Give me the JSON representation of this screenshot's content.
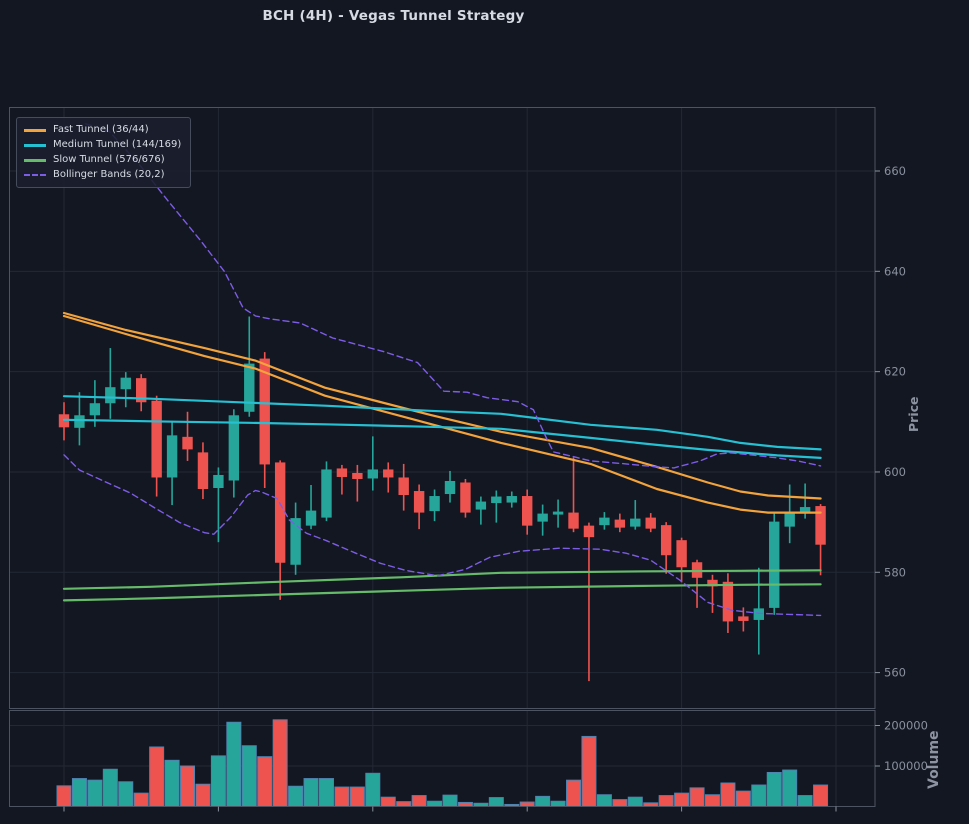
{
  "title": "BCH (4H) - Vegas Tunnel Strategy",
  "colors": {
    "background": "#131722",
    "up": "#26a69a",
    "down": "#ef5350",
    "fast": "#f3a33b",
    "medium": "#26c0d3",
    "slow": "#66bb6a",
    "bollinger": "#7d5ce6",
    "volume_edge": "#4f83b0",
    "grid": "#232834",
    "spine": "#4d5360",
    "tick_text": "#8a909e",
    "title_text": "#d5dae3"
  },
  "legend": {
    "items": [
      {
        "label": "Fast Tunnel (36/44)",
        "color": "#f3a33b",
        "dash": false
      },
      {
        "label": "Medium Tunnel (144/169)",
        "color": "#26c0d3",
        "dash": false
      },
      {
        "label": "Slow Tunnel (576/676)",
        "color": "#66bb6a",
        "dash": false
      },
      {
        "label": "Bollinger Bands (20,2)",
        "color": "#7d5ce6",
        "dash": true
      }
    ]
  },
  "price_axis": {
    "label": "Price",
    "ticks": [
      560,
      580,
      600,
      620,
      640,
      660
    ]
  },
  "volume_axis": {
    "label": "Volume",
    "ticks": [
      100000,
      200000
    ]
  },
  "chart_data": {
    "type": "candlestick",
    "title": "BCH (4H) - Vegas Tunnel Strategy",
    "x_ticks_every": 10,
    "price_axis": {
      "label": "Price",
      "ticks": [
        560,
        580,
        600,
        620,
        640,
        660
      ],
      "visible_range": [
        552.8,
        672.7
      ]
    },
    "volume_axis": {
      "label": "Volume",
      "ticks": [
        100000,
        200000
      ],
      "range": [
        0,
        240000
      ]
    },
    "candles_format": [
      "open",
      "high",
      "low",
      "close",
      "volume"
    ],
    "candles": [
      [
        611.5,
        613.9,
        606.3,
        608.9,
        51000
      ],
      [
        608.8,
        615.9,
        605.3,
        611.3,
        69000
      ],
      [
        611.3,
        618.3,
        609.0,
        613.7,
        65000
      ],
      [
        613.7,
        624.7,
        610.6,
        616.9,
        92000
      ],
      [
        616.5,
        619.9,
        612.9,
        618.8,
        61000
      ],
      [
        618.7,
        619.5,
        612.1,
        613.9,
        33000
      ],
      [
        614.2,
        615.2,
        595.1,
        598.9,
        147000
      ],
      [
        598.9,
        609.9,
        593.4,
        607.3,
        114000
      ],
      [
        607.0,
        612.0,
        602.2,
        604.5,
        100000
      ],
      [
        603.9,
        605.9,
        594.6,
        596.6,
        55000
      ],
      [
        596.8,
        600.9,
        586.0,
        599.4,
        125000
      ],
      [
        598.3,
        612.5,
        594.9,
        611.3,
        208000
      ],
      [
        612.0,
        631.0,
        611.0,
        621.6,
        150000
      ],
      [
        622.6,
        623.9,
        596.8,
        601.5,
        123000
      ],
      [
        601.9,
        602.3,
        574.5,
        581.9,
        214000
      ],
      [
        581.5,
        593.9,
        579.5,
        590.8,
        50000
      ],
      [
        589.3,
        597.4,
        588.6,
        592.3,
        69000
      ],
      [
        590.9,
        602.1,
        590.2,
        600.5,
        69000
      ],
      [
        600.7,
        601.4,
        595.5,
        599.0,
        48000
      ],
      [
        599.8,
        601.4,
        594.1,
        598.6,
        48000
      ],
      [
        598.7,
        607.1,
        596.3,
        600.5,
        82000
      ],
      [
        600.5,
        601.9,
        595.9,
        598.9,
        23000
      ],
      [
        598.9,
        601.6,
        592.3,
        595.4,
        12000
      ],
      [
        596.2,
        597.5,
        588.6,
        591.9,
        27000
      ],
      [
        592.2,
        596.5,
        590.2,
        595.2,
        13000
      ],
      [
        595.6,
        600.2,
        593.9,
        598.2,
        28000
      ],
      [
        597.9,
        598.6,
        590.9,
        591.9,
        10000
      ],
      [
        592.5,
        595.1,
        589.5,
        594.1,
        8000
      ],
      [
        593.8,
        596.3,
        589.9,
        595.1,
        22000
      ],
      [
        593.9,
        596.1,
        592.9,
        595.2,
        5000
      ],
      [
        595.2,
        596.5,
        587.5,
        589.3,
        11000
      ],
      [
        590.1,
        593.5,
        587.3,
        591.7,
        25000
      ],
      [
        591.5,
        594.5,
        588.9,
        592.1,
        13000
      ],
      [
        591.9,
        602.9,
        588.0,
        588.7,
        65000
      ],
      [
        589.3,
        589.9,
        558.3,
        587.0,
        173000
      ],
      [
        589.4,
        592.0,
        588.5,
        590.9,
        29000
      ],
      [
        590.5,
        591.7,
        588.0,
        588.9,
        17000
      ],
      [
        589.1,
        594.4,
        588.5,
        590.7,
        23000
      ],
      [
        590.9,
        591.8,
        588.0,
        588.7,
        9000
      ],
      [
        589.4,
        590.0,
        579.7,
        583.4,
        27000
      ],
      [
        586.4,
        586.9,
        578.0,
        581.0,
        33000
      ],
      [
        582.0,
        582.5,
        572.9,
        578.9,
        46000
      ],
      [
        578.5,
        579.5,
        571.9,
        577.2,
        29000
      ],
      [
        578.1,
        579.8,
        567.9,
        570.2,
        58000
      ],
      [
        571.2,
        573.0,
        568.2,
        570.3,
        38000
      ],
      [
        570.5,
        580.9,
        563.6,
        572.8,
        53000
      ],
      [
        572.9,
        592.1,
        571.5,
        590.1,
        84000
      ],
      [
        589.1,
        597.5,
        585.8,
        592.1,
        90000
      ],
      [
        591.8,
        597.7,
        590.7,
        593.0,
        27000
      ],
      [
        593.2,
        593.6,
        579.4,
        585.5,
        53000
      ]
    ],
    "overlays": [
      {
        "id": "fast-tunnel",
        "name": "Fast Tunnel (36/44)",
        "color": "#f3a33b",
        "dash": false,
        "lines": [
          [
            [
              0,
              631.7
            ],
            [
              4,
              628.3
            ],
            [
              9.1,
              624.7
            ],
            [
              12.4,
              622.2
            ],
            [
              16.9,
              616.8
            ],
            [
              23.7,
              611.4
            ],
            [
              28.3,
              608.0
            ],
            [
              34.1,
              604.8
            ],
            [
              38.4,
              601.0
            ],
            [
              41.7,
              597.9
            ],
            [
              43.8,
              596.1
            ],
            [
              45.6,
              595.3
            ],
            [
              49,
              594.7
            ]
          ],
          [
            [
              0,
              631.1
            ],
            [
              4,
              627.5
            ],
            [
              9.1,
              623.1
            ],
            [
              12.4,
              620.6
            ],
            [
              16.9,
              615.2
            ],
            [
              23.7,
              609.6
            ],
            [
              28.3,
              605.8
            ],
            [
              34.1,
              601.6
            ],
            [
              38.4,
              596.6
            ],
            [
              41.7,
              593.9
            ],
            [
              43.8,
              592.5
            ],
            [
              45.6,
              591.9
            ],
            [
              49,
              591.9
            ]
          ]
        ]
      },
      {
        "id": "medium-tunnel",
        "name": "Medium Tunnel (144/169)",
        "color": "#26c0d3",
        "dash": false,
        "lines": [
          [
            [
              0,
              615.1
            ],
            [
              5.6,
              614.6
            ],
            [
              12,
              613.8
            ],
            [
              16.9,
              613.2
            ],
            [
              23.7,
              612.2
            ],
            [
              28.3,
              611.6
            ],
            [
              34.1,
              609.4
            ],
            [
              38.4,
              608.4
            ],
            [
              41.7,
              607.0
            ],
            [
              43.8,
              605.8
            ],
            [
              46.2,
              605.0
            ],
            [
              49,
              604.5
            ]
          ],
          [
            [
              0,
              610.4
            ],
            [
              5.6,
              610.1
            ],
            [
              12,
              609.8
            ],
            [
              16.9,
              609.5
            ],
            [
              23.7,
              609.0
            ],
            [
              28.3,
              608.6
            ],
            [
              34.1,
              606.8
            ],
            [
              38.4,
              605.4
            ],
            [
              41.7,
              604.4
            ],
            [
              43.8,
              603.9
            ],
            [
              46.2,
              603.3
            ],
            [
              49,
              602.8
            ]
          ]
        ]
      },
      {
        "id": "slow-tunnel",
        "name": "Slow Tunnel (576/676)",
        "color": "#66bb6a",
        "dash": false,
        "lines": [
          [
            [
              0,
              576.7
            ],
            [
              5.6,
              577.1
            ],
            [
              13,
              578.0
            ],
            [
              21.8,
              579.0
            ],
            [
              28.3,
              579.9
            ],
            [
              38,
              580.2
            ],
            [
              43.8,
              580.3
            ],
            [
              49,
              580.4
            ]
          ],
          [
            [
              0,
              574.4
            ],
            [
              5.6,
              574.8
            ],
            [
              13,
              575.5
            ],
            [
              21.8,
              576.3
            ],
            [
              28.3,
              576.9
            ],
            [
              38,
              577.3
            ],
            [
              43.8,
              577.5
            ],
            [
              49,
              577.6
            ]
          ]
        ]
      },
      {
        "id": "bollinger-bands",
        "name": "Bollinger Bands (20,2)",
        "color": "#7d5ce6",
        "dash": true,
        "lines": [
          [
            [
              1.4,
              669.4
            ],
            [
              2.9,
              668.0
            ],
            [
              4.9,
              661.2
            ],
            [
              6.7,
              654.2
            ],
            [
              8.8,
              646.3
            ],
            [
              10.4,
              639.9
            ],
            [
              11.6,
              632.7
            ],
            [
              12.4,
              631.1
            ],
            [
              13.4,
              630.5
            ],
            [
              15.3,
              629.7
            ],
            [
              17.4,
              626.7
            ],
            [
              20.7,
              624.0
            ],
            [
              22.9,
              621.8
            ],
            [
              24.6,
              616.1
            ],
            [
              26.1,
              615.9
            ],
            [
              27.4,
              614.8
            ],
            [
              29.4,
              614.0
            ],
            [
              30.4,
              612.4
            ],
            [
              31.3,
              606.4
            ],
            [
              31.7,
              604.0
            ],
            [
              32.8,
              603.2
            ],
            [
              34.1,
              602.2
            ],
            [
              36.4,
              601.6
            ],
            [
              38.4,
              601.0
            ],
            [
              39.5,
              600.8
            ],
            [
              41.2,
              602.2
            ],
            [
              42.3,
              603.6
            ],
            [
              43.2,
              603.8
            ],
            [
              44.5,
              603.4
            ],
            [
              46.2,
              602.8
            ],
            [
              47.5,
              602.2
            ],
            [
              49,
              601.2
            ]
          ],
          [
            [
              0,
              603.4
            ],
            [
              1,
              600.4
            ],
            [
              2.7,
              598.0
            ],
            [
              4.3,
              595.8
            ],
            [
              5.9,
              592.8
            ],
            [
              7.5,
              589.9
            ],
            [
              9.1,
              587.9
            ],
            [
              9.7,
              587.6
            ],
            [
              10.8,
              591.0
            ],
            [
              11.9,
              595.4
            ],
            [
              12.4,
              596.3
            ],
            [
              12.8,
              596.0
            ],
            [
              13.8,
              594.7
            ],
            [
              14.6,
              590.4
            ],
            [
              15.7,
              587.8
            ],
            [
              17,
              586.3
            ],
            [
              18.9,
              583.8
            ],
            [
              20.5,
              581.8
            ],
            [
              22.1,
              580.4
            ],
            [
              24.2,
              579.3
            ],
            [
              26,
              580.6
            ],
            [
              27.6,
              583.0
            ],
            [
              29.5,
              584.2
            ],
            [
              32.1,
              584.8
            ],
            [
              34.7,
              584.6
            ],
            [
              36.4,
              583.8
            ],
            [
              38,
              582.4
            ],
            [
              39.9,
              578.4
            ],
            [
              41.7,
              574.0
            ],
            [
              43.3,
              572.4
            ],
            [
              45.1,
              571.8
            ],
            [
              47,
              571.6
            ],
            [
              49,
              571.4
            ]
          ]
        ]
      }
    ]
  }
}
